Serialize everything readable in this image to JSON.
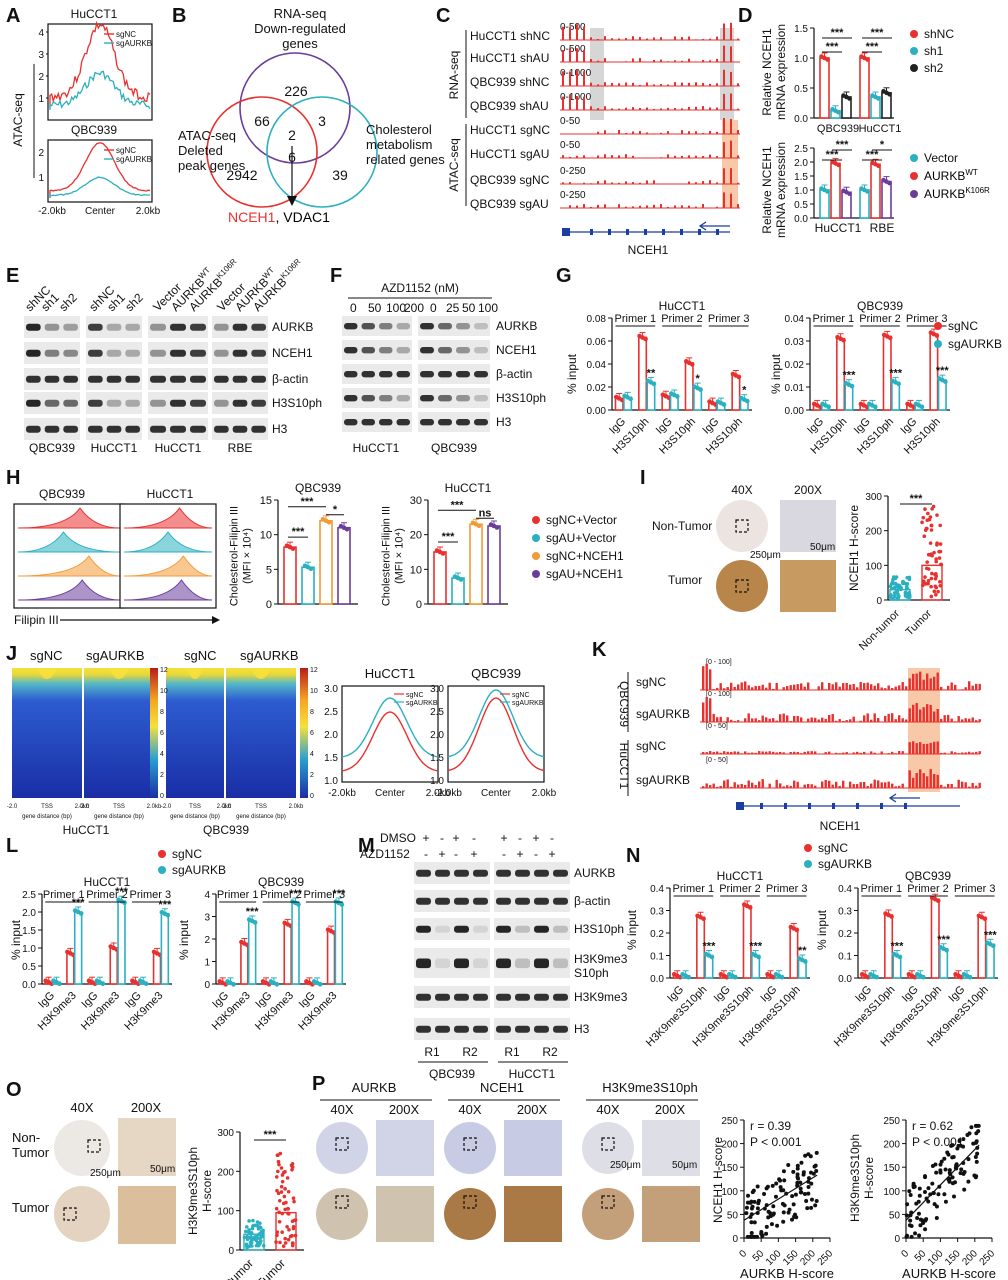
{
  "panels": {
    "A": {
      "letter": "A",
      "top_title": "HuCCT1",
      "bottom_title": "QBC939",
      "ylabel": "ATAC-seq",
      "legend": [
        "sgNC",
        "sgAURKB"
      ],
      "yticks_top": [
        "1",
        "2",
        "3",
        "4"
      ],
      "yticks_bottom": [
        "1",
        "2"
      ],
      "xticks": [
        "-2.0kb",
        "Center",
        "2.0kb"
      ]
    },
    "B": {
      "letter": "B",
      "set1": "RNA-seq\nDown-regulated\ngenes",
      "set2": "ATAC-seq\nDeleted\npeak genes",
      "set3": "Cholesterol\nmetabolism\nrelated genes",
      "counts": {
        "rna_only": "226",
        "atac_only": "2942",
        "chol_only": "39",
        "rna_atac": "66",
        "rna_chol": "3",
        "center": "2",
        "atac_chol": "6"
      },
      "genes_red": "NCEH1",
      "genes_rest": ", VDAC1"
    },
    "C": {
      "letter": "C",
      "group1": "RNA-seq",
      "group2": "ATAC-seq",
      "tracks": [
        {
          "label": "HuCCT1 shNC",
          "range": "0-500"
        },
        {
          "label": "HuCCT1 shAU",
          "range": "0-500"
        },
        {
          "label": "QBC939 shNC",
          "range": "0-1000"
        },
        {
          "label": "QBC939 shAU",
          "range": "0-1000"
        },
        {
          "label": "HuCCT1 sgNC",
          "range": "0-50"
        },
        {
          "label": "HuCCT1 sgAU",
          "range": "0-50"
        },
        {
          "label": "QBC939 sgNC",
          "range": "0-250"
        },
        {
          "label": "QBC939 sgAU",
          "range": "0-250"
        }
      ],
      "gene": "NCEH1"
    },
    "D": {
      "letter": "D",
      "ylabel": "Relative NCEH1\nmRNA expression",
      "top": {
        "yticks": [
          "0.0",
          "0.5",
          "1.0",
          "1.5"
        ],
        "groups": [
          "QBC939",
          "HuCCT1"
        ],
        "legend": [
          "shNC",
          "sh1",
          "sh2"
        ],
        "values": [
          [
            1.0,
            0.12,
            0.35
          ],
          [
            1.0,
            0.35,
            0.42
          ]
        ],
        "sig": [
          "***",
          "***",
          "***",
          "***"
        ]
      },
      "bottom": {
        "yticks": [
          "0.0",
          "0.5",
          "1.0",
          "1.5",
          "2.0",
          "2.5"
        ],
        "groups": [
          "HuCCT1",
          "RBE"
        ],
        "legend": [
          "Vector",
          "AURKB",
          "WT",
          "AURKB",
          "K106R"
        ],
        "values": [
          [
            1.0,
            1.95,
            0.92
          ],
          [
            1.0,
            1.92,
            1.3
          ]
        ],
        "sig": [
          "***",
          "***",
          "***",
          "*"
        ]
      }
    },
    "E": {
      "letter": "E",
      "lanes1": [
        "shNC",
        "sh1",
        "sh2",
        "shNC",
        "sh1",
        "sh2"
      ],
      "lanes2": [
        "Vector",
        "AURKB",
        "WT",
        "AURKB",
        "K106R",
        "Vector",
        "AURKB",
        "WT",
        "AURKB",
        "K106R"
      ],
      "rows": [
        "AURKB",
        "NCEH1",
        "β-actin",
        "H3S10ph",
        "H3"
      ],
      "cells": [
        "QBC939",
        "HuCCT1",
        "HuCCT1",
        "RBE"
      ]
    },
    "F": {
      "letter": "F",
      "title": "AZD1152 (nM)",
      "doses1": [
        "0",
        "50",
        "100",
        "200"
      ],
      "doses2": [
        "0",
        "25",
        "50",
        "100"
      ],
      "rows": [
        "AURKB",
        "NCEH1",
        "β-actin",
        "H3S10ph",
        "H3"
      ],
      "cells": [
        "HuCCT1",
        "QBC939"
      ]
    },
    "G": {
      "letter": "G",
      "ylabel": "% input",
      "legend": [
        "sgNC",
        "sgAURKB"
      ],
      "left": {
        "title": "HuCCT1",
        "yticks": [
          "0.00",
          "0.02",
          "0.04",
          "0.06",
          "0.08"
        ],
        "primers": [
          "Primer 1",
          "Primer 2",
          "Primer 3"
        ],
        "xlabels": [
          "IgG",
          "H3S10ph",
          "IgG",
          "H3S10ph",
          "IgG",
          "H3S10ph"
        ],
        "values": [
          [
            0.01,
            0.011
          ],
          [
            0.063,
            0.024
          ],
          [
            0.012,
            0.013
          ],
          [
            0.041,
            0.019
          ],
          [
            0.006,
            0.006
          ],
          [
            0.03,
            0.009
          ]
        ],
        "sig": [
          "**",
          "*",
          "*"
        ]
      },
      "right": {
        "title": "QBC939",
        "yticks": [
          "0.00",
          "0.01",
          "0.02",
          "0.03",
          "0.04"
        ],
        "primers": [
          "Primer 1",
          "Primer 2",
          "Primer 3"
        ],
        "xlabels": [
          "IgG",
          "H3S10ph",
          "IgG",
          "H3S10ph",
          "IgG",
          "H3S10ph"
        ],
        "values": [
          [
            0.002,
            0.002
          ],
          [
            0.031,
            0.011
          ],
          [
            0.002,
            0.002
          ],
          [
            0.032,
            0.012
          ],
          [
            0.002,
            0.002
          ],
          [
            0.033,
            0.013
          ]
        ],
        "sig": [
          "***",
          "***",
          "***"
        ]
      }
    },
    "H": {
      "letter": "H",
      "flow_titles": [
        "QBC939",
        "HuCCT1"
      ],
      "xaxis": "Filipin III",
      "ylabel": "Cholesterol-Filipin III\n(MFI × 10⁴)",
      "left": {
        "title": "QBC939",
        "yticks": [
          "0",
          "5",
          "10",
          "15"
        ],
        "values": [
          8.2,
          5.3,
          12.0,
          11.0
        ],
        "sig": [
          "***",
          "***",
          "*"
        ]
      },
      "right": {
        "title": "HuCCT1",
        "yticks": [
          "0",
          "10",
          "20",
          "30"
        ],
        "values": [
          15.0,
          7.5,
          23.0,
          22.5
        ],
        "sig": [
          "***",
          "***",
          "ns"
        ]
      },
      "legend": [
        "sgNC+Vector",
        "sgAU+Vector",
        "sgNC+NCEH1",
        "sgAU+NCEH1"
      ],
      "colors": [
        "#e8312f",
        "#2ab0c0",
        "#f29a35",
        "#6a3d9a"
      ]
    },
    "I": {
      "letter": "I",
      "mag": [
        "40X",
        "200X"
      ],
      "rows": [
        "Non-Tumor",
        "Tumor"
      ],
      "scale": [
        "250μm",
        "50μm"
      ],
      "ylabel": "NCEH1 H-score",
      "yticks": [
        "0",
        "100",
        "200",
        "300"
      ],
      "groups": [
        "Non-tumor",
        "Tumor"
      ],
      "means": [
        30,
        100
      ],
      "sig": "***"
    },
    "J": {
      "letter": "J",
      "labels": [
        "sgNC",
        "sgAURKB",
        "sgNC",
        "sgAURKB"
      ],
      "cells": [
        "HuCCT1",
        "QBC939"
      ],
      "colorbar": [
        "12",
        "10",
        "8",
        "6",
        "4",
        "2",
        "0"
      ],
      "xticks": [
        "-2.0",
        "TSS",
        "2.0kb"
      ],
      "xlabel": "gene distance (bp)",
      "profiles": {
        "left": {
          "title": "HuCCT1",
          "yticks": [
            "1.0",
            "1.5",
            "2.0",
            "2.5",
            "3.0"
          ],
          "legend": [
            "sgNC",
            "sgAURKB"
          ]
        },
        "right": {
          "title": "QBC939",
          "yticks": [
            "1.0",
            "1.5",
            "2.0",
            "2.5",
            "3.0"
          ],
          "legend": [
            "sgNC",
            "sgAURKB"
          ]
        },
        "xticks": [
          "-2.0kb",
          "Center",
          "2.0kb"
        ]
      }
    },
    "K": {
      "letter": "K",
      "groups": [
        "QBC939",
        "HuCCT1"
      ],
      "tracks": [
        {
          "label": "sgNC",
          "range": "[0 - 100]"
        },
        {
          "label": "sgAURKB",
          "range": "[0 - 100]"
        },
        {
          "label": "sgNC",
          "range": "[0 - 50]"
        },
        {
          "label": "sgAURKB",
          "range": "[0 - 50]"
        }
      ],
      "gene": "NCEH1"
    },
    "L": {
      "letter": "L",
      "ylabel": "% input",
      "legend": [
        "sgNC",
        "sgAURKB"
      ],
      "left": {
        "title": "HuCCT1",
        "yticks": [
          "0.0",
          "0.5",
          "1.0",
          "1.5",
          "2.0",
          "2.5"
        ],
        "primers": [
          "Primer 1",
          "Primer 2",
          "Primer 3"
        ],
        "xlabels": [
          "IgG",
          "H3K9me3",
          "IgG",
          "H3K9me3",
          "IgG",
          "H3K9me3"
        ],
        "values": [
          [
            0.05,
            0.05
          ],
          [
            0.85,
            2.0
          ],
          [
            0.05,
            0.05
          ],
          [
            1.0,
            2.3
          ],
          [
            0.05,
            0.05
          ],
          [
            0.85,
            1.95
          ]
        ],
        "sig": [
          "***",
          "***",
          "***"
        ]
      },
      "right": {
        "title": "QBC939",
        "yticks": [
          "0",
          "1",
          "2",
          "3",
          "4"
        ],
        "primers": [
          "Primer 1",
          "Primer 2",
          "Primer 3"
        ],
        "xlabels": [
          "IgG",
          "H3K9me3",
          "IgG",
          "H3K9me3",
          "IgG",
          "H3K9me3"
        ],
        "values": [
          [
            0.05,
            0.05
          ],
          [
            1.8,
            2.8
          ],
          [
            0.05,
            0.05
          ],
          [
            2.65,
            3.6
          ],
          [
            0.05,
            0.05
          ],
          [
            2.35,
            3.6
          ]
        ],
        "sig": [
          "***",
          "***",
          "***"
        ]
      }
    },
    "M": {
      "letter": "M",
      "row1": "DMSO",
      "row2": "AZD1152",
      "signs1": [
        "+",
        "-",
        "+",
        "-",
        "+",
        "-",
        "+",
        "-"
      ],
      "signs2": [
        "-",
        "+",
        "-",
        "+",
        "-",
        "+",
        "-",
        "+"
      ],
      "rows": [
        "AURKB",
        "β-actin",
        "H3S10ph",
        "H3K9me3\nS10ph",
        "H3K9me3",
        "H3"
      ],
      "reps": [
        "R1",
        "R2",
        "R1",
        "R2"
      ],
      "cells": [
        "QBC939",
        "HuCCT1"
      ]
    },
    "N": {
      "letter": "N",
      "ylabel": "% input",
      "legend": [
        "sgNC",
        "sgAURKB"
      ],
      "left": {
        "title": "HuCCT1",
        "yticks": [
          "0.0",
          "0.1",
          "0.2",
          "0.3",
          "0.4"
        ],
        "primers": [
          "Primer 1",
          "Primer 2",
          "Primer 3"
        ],
        "xlabels": [
          "IgG",
          "H3K9me3S10ph",
          "IgG",
          "H3K9me3S10ph",
          "IgG",
          "H3K9me3S10ph"
        ],
        "values": [
          [
            0.01,
            0.01
          ],
          [
            0.27,
            0.1
          ],
          [
            0.01,
            0.01
          ],
          [
            0.32,
            0.1
          ],
          [
            0.01,
            0.01
          ],
          [
            0.22,
            0.08
          ]
        ],
        "sig": [
          "***",
          "***",
          "**"
        ]
      },
      "right": {
        "title": "QBC939",
        "yticks": [
          "0.0",
          "0.1",
          "0.2",
          "0.3",
          "0.4"
        ],
        "primers": [
          "Primer 1",
          "Primer 2",
          "Primer 3"
        ],
        "xlabels": [
          "IgG",
          "H3K9me3S10ph",
          "IgG",
          "H3K9me3S10ph",
          "IgG",
          "H3K9me3S10ph"
        ],
        "values": [
          [
            0.01,
            0.01
          ],
          [
            0.28,
            0.1
          ],
          [
            0.01,
            0.01
          ],
          [
            0.35,
            0.13
          ],
          [
            0.01,
            0.01
          ],
          [
            0.27,
            0.15
          ]
        ],
        "sig": [
          "***",
          "***",
          "***"
        ]
      }
    },
    "O": {
      "letter": "O",
      "mag": [
        "40X",
        "200X"
      ],
      "rows": [
        "Non-\nTumor",
        "Tumor"
      ],
      "scale": [
        "250μm",
        "50μm"
      ],
      "ylabel": "H3K9me3S10ph\nH-score",
      "yticks": [
        "0",
        "100",
        "200",
        "300"
      ],
      "groups": [
        "Non-tumor",
        "Tumor"
      ],
      "means": [
        40,
        95
      ],
      "sig": "***"
    },
    "P": {
      "letter": "P",
      "stains": [
        "AURKB",
        "NCEH1",
        "H3K9me3S10ph"
      ],
      "mag": [
        "40X",
        "200X"
      ],
      "scale": [
        "250μm",
        "50μm"
      ],
      "scatter1": {
        "ylabel": "NCEH1 H-score",
        "xlabel": "AURKB H-score",
        "r": "r = 0.39",
        "p": "P < 0.001",
        "yticks": [
          "0",
          "50",
          "100",
          "150",
          "200",
          "250"
        ],
        "xticks": [
          "0",
          "50",
          "100",
          "150",
          "200",
          "250"
        ]
      },
      "scatter2": {
        "ylabel": "H3K9me3S10ph\nH-score",
        "xlabel": "AURKB H-score",
        "r": "r = 0.62",
        "p": "P < 0.001",
        "yticks": [
          "0",
          "50",
          "100",
          "150",
          "200",
          "250"
        ],
        "xticks": [
          "0",
          "50",
          "100",
          "150",
          "200",
          "250"
        ]
      }
    }
  },
  "colors": {
    "red": "#e8312f",
    "cyan": "#2ab0c0",
    "black": "#222222",
    "purple": "#6a3d9a",
    "orange": "#f29a35",
    "tumor": "#b8864a",
    "normal": "#c9cde4"
  }
}
